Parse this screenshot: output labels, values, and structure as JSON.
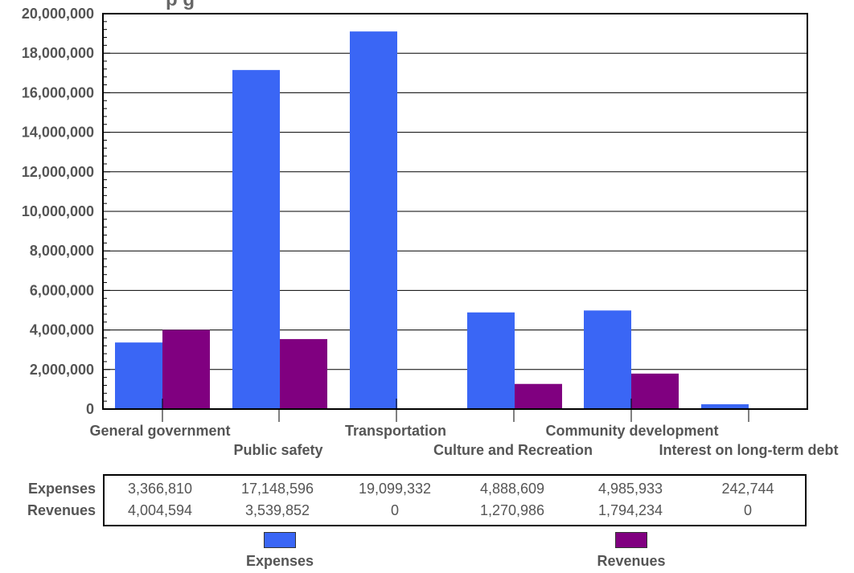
{
  "chart_data": {
    "type": "bar",
    "title_fragment": "p              g",
    "categories": [
      "General government",
      "Public safety",
      "Transportation",
      "Culture and Recreation",
      "Community development",
      "Interest on long-term debt"
    ],
    "series": [
      {
        "name": "Expenses",
        "color": "#3a66f5",
        "values": [
          3366810,
          17148596,
          19099332,
          4888609,
          4985933,
          242744
        ]
      },
      {
        "name": "Revenues",
        "color": "#800080",
        "values": [
          4004594,
          3539852,
          0,
          1270986,
          1794234,
          0
        ]
      }
    ],
    "ylim": [
      0,
      20000000
    ],
    "yticks": [
      "0",
      "2,000,000",
      "4,000,000",
      "6,000,000",
      "8,000,000",
      "10,000,000",
      "12,000,000",
      "14,000,000",
      "16,000,000",
      "18,000,000",
      "20,000,000"
    ],
    "grid": true,
    "legend_position": "bottom"
  },
  "table": {
    "row_labels": [
      "Expenses",
      "Revenues"
    ],
    "rows": [
      [
        "3,366,810",
        "17,148,596",
        "19,099,332",
        "4,888,609",
        "4,985,933",
        "242,744"
      ],
      [
        "4,004,594",
        "3,539,852",
        "0",
        "1,270,986",
        "1,794,234",
        "0"
      ]
    ]
  },
  "legend": [
    "Expenses",
    "Revenues"
  ]
}
